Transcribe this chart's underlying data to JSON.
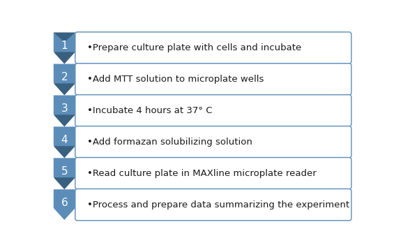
{
  "steps": [
    {
      "number": "1",
      "text": "•Prepare culture plate with cells and incubate"
    },
    {
      "number": "2",
      "text": "•Add MTT solution to microplate wells"
    },
    {
      "number": "3",
      "text": "•Incubate 4 hours at 37° C"
    },
    {
      "number": "4",
      "text": "•Add formazan solubilizing solution"
    },
    {
      "number": "5",
      "text": "•Read culture plate in MAXline microplate reader"
    },
    {
      "number": "6",
      "text": "•Process and prepare data summarizing the experiment"
    }
  ],
  "chevron_color": "#5B8DB8",
  "chevron_dark": "#3A6080",
  "box_fill": "#FFFFFF",
  "box_edge": "#5B8DB8",
  "number_text_color": "#FFFFFF",
  "step_text_color": "#1A1A1A",
  "background_color": "#FFFFFF",
  "fig_width": 5.65,
  "fig_height": 3.58,
  "dpi": 100
}
